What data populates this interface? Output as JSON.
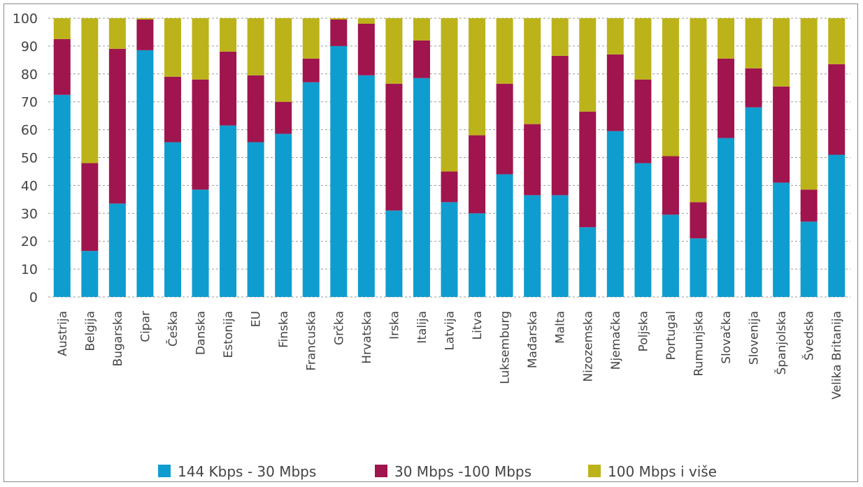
{
  "chart_data": {
    "type": "bar",
    "stacked": true,
    "title": "",
    "xlabel": "",
    "ylabel": "",
    "ylim": [
      0,
      100
    ],
    "yticks": [
      0,
      10,
      20,
      30,
      40,
      50,
      60,
      70,
      80,
      90,
      100
    ],
    "grid": true,
    "legend_position": "bottom",
    "categories": [
      "Austrija",
      "Belgija",
      "Bugarska",
      "Cipar",
      "Češka",
      "Danska",
      "Estonija",
      "EU",
      "Finska",
      "Francuska",
      "Grčka",
      "Hrvatska",
      "Irska",
      "Italija",
      "Latvija",
      "Litva",
      "Luksemburg",
      "Mađarska",
      "Malta",
      "Nizozemska",
      "Njemačka",
      "Poljska",
      "Portugal",
      "Rumunjska",
      "Slovačka",
      "Slovenija",
      "Španjolska",
      "Švedska",
      "Velika Britanija"
    ],
    "series": [
      {
        "name": "144 Kbps - 30 Mbps",
        "color": "#0f9dcf",
        "values": [
          72.5,
          16.5,
          33.5,
          88.5,
          55.5,
          38.5,
          61.5,
          55.5,
          58.5,
          77,
          90,
          79.5,
          31,
          78.5,
          34,
          30,
          44,
          36.5,
          36.5,
          25,
          59.5,
          48,
          29.5,
          21,
          57,
          68,
          41,
          27,
          51
        ]
      },
      {
        "name": "30 Mbps -100 Mbps",
        "color": "#a0154e",
        "values": [
          20,
          31.5,
          55.5,
          11,
          23.5,
          39.5,
          26.5,
          24,
          11.5,
          8.5,
          9.5,
          18.5,
          45.5,
          13.5,
          11,
          28,
          32.5,
          25.5,
          50,
          41.5,
          27.5,
          30,
          21,
          13,
          28.5,
          14,
          34.5,
          11.5,
          32.5
        ]
      },
      {
        "name": "100 Mbps i više",
        "color": "#bcb31a",
        "values": [
          7.5,
          52,
          11,
          0.5,
          21,
          22,
          12,
          20.5,
          30,
          14.5,
          0.5,
          2,
          23.5,
          8,
          55,
          42,
          23.5,
          38,
          13.5,
          33.5,
          13,
          22,
          49.5,
          66,
          14.5,
          18,
          24.5,
          61.5,
          16.5
        ]
      }
    ]
  }
}
